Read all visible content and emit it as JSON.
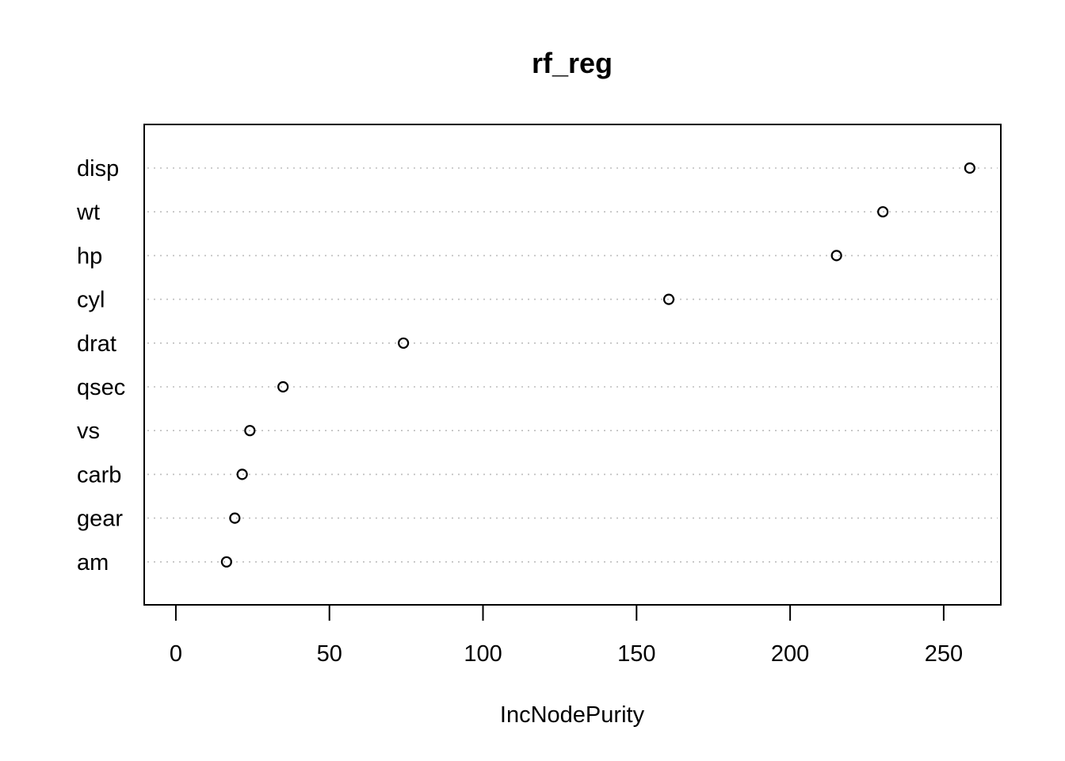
{
  "chart_data": {
    "type": "scatter",
    "subtype": "dotchart",
    "title": "rf_reg",
    "xlabel": "IncNodePurity",
    "ylabel": "",
    "xlim": [
      -10.3,
      268.6
    ],
    "xticks": [
      0,
      50,
      100,
      150,
      200,
      250
    ],
    "grid": "horizontal dotted",
    "categories": [
      "disp",
      "wt",
      "hp",
      "cyl",
      "drat",
      "qsec",
      "vs",
      "carb",
      "gear",
      "am"
    ],
    "values": [
      258.5,
      230.2,
      215.1,
      160.5,
      74.1,
      34.9,
      24.1,
      21.6,
      19.2,
      16.5
    ]
  }
}
